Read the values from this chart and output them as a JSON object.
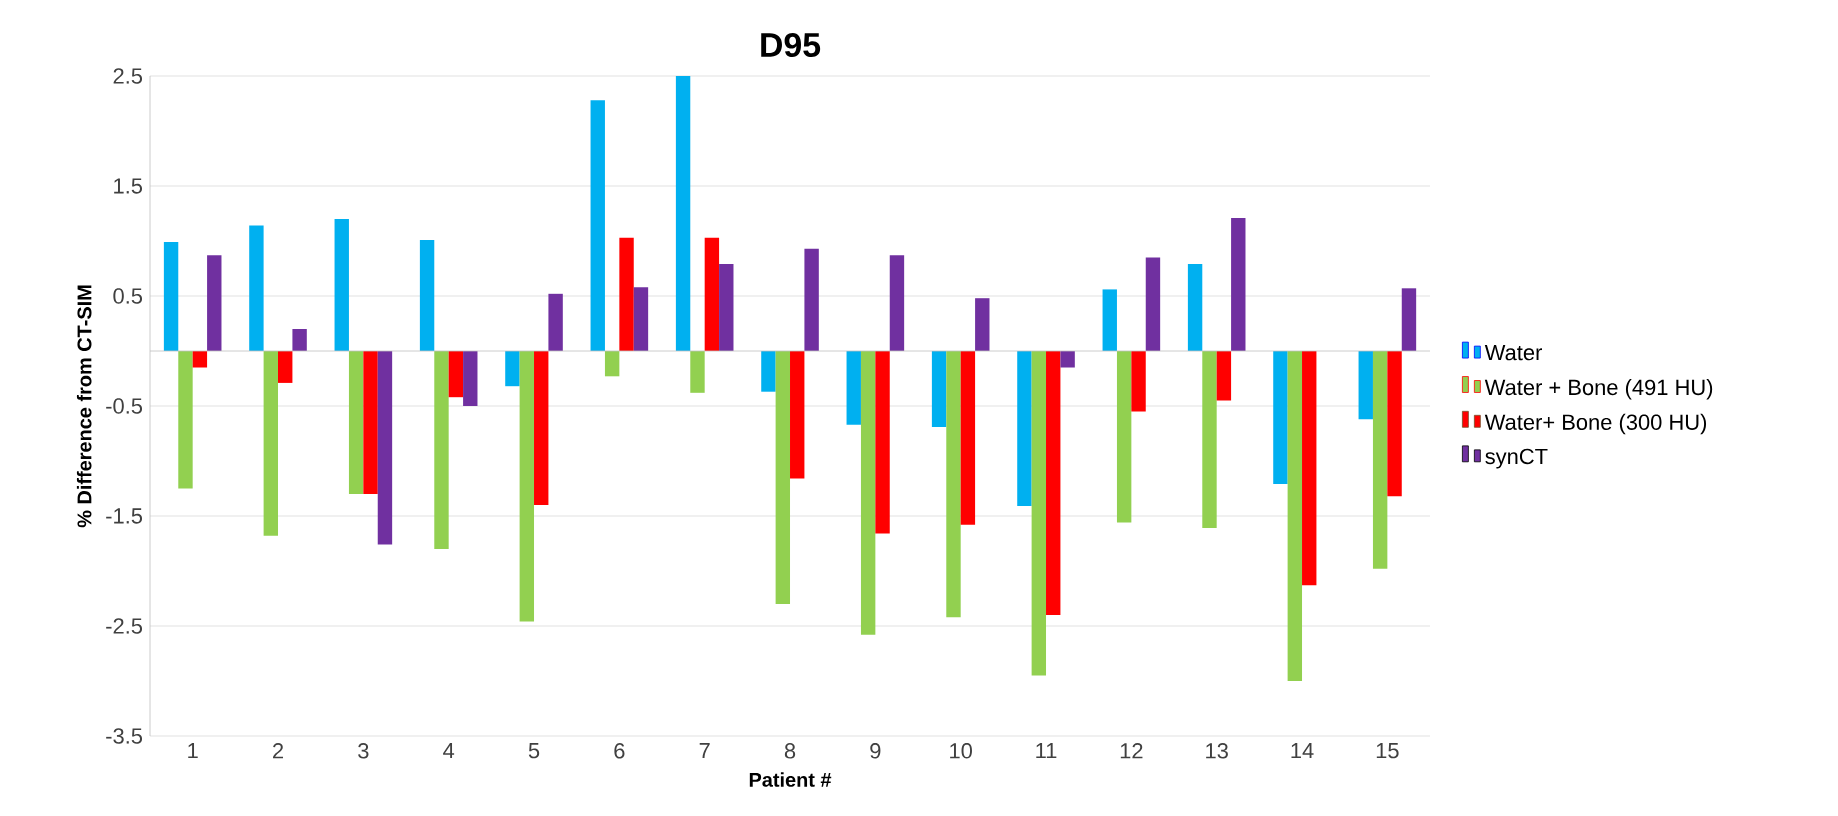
{
  "chart_data": {
    "type": "bar",
    "title": "D95",
    "xlabel": "Patient #",
    "ylabel": "% Difference from CT-SIM",
    "categories": [
      "1",
      "2",
      "3",
      "4",
      "5",
      "6",
      "7",
      "8",
      "9",
      "10",
      "11",
      "12",
      "13",
      "14",
      "15"
    ],
    "series": [
      {
        "name": "Water",
        "color": "#00b0f0",
        "values": [
          0.99,
          1.14,
          1.2,
          1.01,
          -0.32,
          2.28,
          2.5,
          -0.37,
          -0.67,
          -0.69,
          -1.41,
          0.56,
          0.79,
          -1.21,
          -0.62
        ]
      },
      {
        "name": "Water + Bone (491 HU)",
        "color": "#92d050",
        "values": [
          -1.25,
          -1.68,
          -1.3,
          -1.8,
          -2.46,
          -0.23,
          -0.38,
          -2.3,
          -2.58,
          -2.42,
          -2.95,
          -1.56,
          -1.61,
          -3.0,
          -1.98
        ]
      },
      {
        "name": "Water+ Bone (300 HU)",
        "color": "#ff0000",
        "values": [
          -0.15,
          -0.29,
          -1.3,
          -0.42,
          -1.4,
          1.03,
          1.03,
          -1.16,
          -1.66,
          -1.58,
          -2.4,
          -0.55,
          -0.45,
          -2.13,
          -1.32
        ]
      },
      {
        "name": "synCT",
        "color": "#7030a0",
        "values": [
          0.87,
          0.2,
          -1.76,
          -0.5,
          0.52,
          0.58,
          0.79,
          0.93,
          0.87,
          0.48,
          -0.15,
          0.85,
          1.21,
          0.0,
          0.57
        ]
      }
    ],
    "ylim": [
      -3.5,
      2.5
    ],
    "yticks": [
      -3.5,
      -2.5,
      -1.5,
      -0.5,
      0.5,
      1.5,
      2.5
    ],
    "grid": "y",
    "legend": "right"
  }
}
